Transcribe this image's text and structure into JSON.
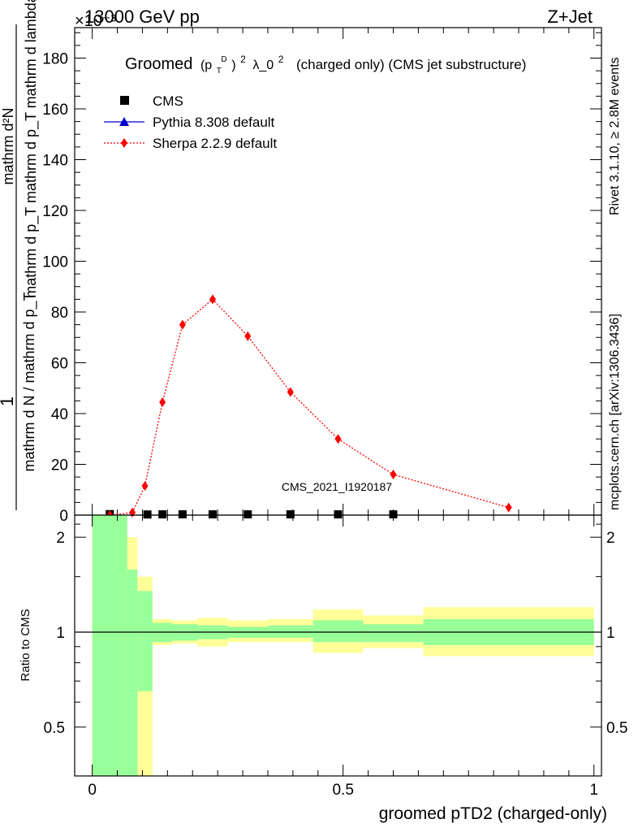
{
  "header": {
    "left": "13000 GeV pp",
    "right": "Z+Jet",
    "exponent": "×10⁻³"
  },
  "side_labels": {
    "rivet": "Rivet 3.1.10, ≥ 2.8M events",
    "mcplots": "mcplots.cern.ch [arXiv:1306.3436]"
  },
  "watermark": "CMS_2021_I1920187",
  "chart_data": [
    {
      "type": "scatter",
      "title_main": "Groomed",
      "title_formula": "(p",
      "title_rest": "λ_0",
      "title_suffix": "(charged only) (CMS jet substructure)",
      "title_sub_T": "T",
      "title_sup_D": "D",
      "title_sup_2a": "2",
      "title_sup_2b": "2",
      "ylabel_num": "mathrm d²N",
      "ylabel_den": "mathrm d p_T mathrm d p_T mathrm d lambda",
      "ylabel_prefix_num": "1",
      "ylabel_prefix_den": "mathrm d N / mathrm d p_T",
      "ylim": [
        0,
        192
      ],
      "yticks": [
        0,
        20,
        40,
        60,
        80,
        100,
        120,
        140,
        160,
        180
      ],
      "xlim": [
        -0.035,
        1.015
      ],
      "legend_position": "top-left",
      "series": [
        {
          "name": "CMS",
          "color": "#000000",
          "marker": "square",
          "x": [
            0.035,
            0.11,
            0.14,
            0.18,
            0.24,
            0.31,
            0.395,
            0.49,
            0.6
          ],
          "y": [
            0.4,
            0.25,
            0.3,
            0.3,
            0.3,
            0.3,
            0.3,
            0.3,
            0.3
          ]
        },
        {
          "name": "Pythia 8.308 default",
          "color": "#0000cc",
          "marker": "triangle",
          "x": [],
          "y": []
        },
        {
          "name": "Sherpa 2.2.9 default",
          "color": "#ff0000",
          "marker": "diamond",
          "line": "dotted",
          "x": [
            0.035,
            0.08,
            0.105,
            0.14,
            0.18,
            0.24,
            0.31,
            0.395,
            0.49,
            0.6,
            0.83
          ],
          "y": [
            0.0,
            1.0,
            11.5,
            44.5,
            75.0,
            85.0,
            70.5,
            48.5,
            30.0,
            16.0,
            3.0
          ]
        }
      ]
    },
    {
      "type": "area",
      "ylabel": "Ratio to CMS",
      "xlabel": "groomed pTD2 (charged-only)",
      "ylim": [
        0.35,
        2.35
      ],
      "yticks": [
        0.5,
        1,
        2
      ],
      "ytick_labels": [
        "0.5",
        "1",
        "2"
      ],
      "xlim": [
        -0.035,
        1.015
      ],
      "xticks": [
        0,
        0.5,
        1
      ],
      "xtick_labels": [
        "0",
        "0.5",
        "1"
      ],
      "bands": [
        {
          "x0": 0.0,
          "x1": 0.07,
          "g_lo": 0.35,
          "g_hi": 2.35,
          "y_lo": 0.35,
          "y_hi": 2.35
        },
        {
          "x0": 0.07,
          "x1": 0.09,
          "g_lo": 0.35,
          "g_hi": 1.58,
          "y_lo": 0.35,
          "y_hi": 2.0
        },
        {
          "x0": 0.09,
          "x1": 0.12,
          "g_lo": 0.65,
          "g_hi": 1.35,
          "y_lo": 0.35,
          "y_hi": 1.5
        },
        {
          "x0": 0.12,
          "x1": 0.16,
          "g_lo": 0.93,
          "g_hi": 1.07,
          "y_lo": 0.91,
          "y_hi": 1.1
        },
        {
          "x0": 0.16,
          "x1": 0.21,
          "g_lo": 0.94,
          "g_hi": 1.06,
          "y_lo": 0.92,
          "y_hi": 1.09
        },
        {
          "x0": 0.21,
          "x1": 0.27,
          "g_lo": 0.95,
          "g_hi": 1.05,
          "y_lo": 0.9,
          "y_hi": 1.11
        },
        {
          "x0": 0.27,
          "x1": 0.35,
          "g_lo": 0.96,
          "g_hi": 1.04,
          "y_lo": 0.93,
          "y_hi": 1.09
        },
        {
          "x0": 0.35,
          "x1": 0.44,
          "g_lo": 0.96,
          "g_hi": 1.05,
          "y_lo": 0.93,
          "y_hi": 1.1
        },
        {
          "x0": 0.44,
          "x1": 0.54,
          "g_lo": 0.93,
          "g_hi": 1.09,
          "y_lo": 0.86,
          "y_hi": 1.18
        },
        {
          "x0": 0.54,
          "x1": 0.66,
          "g_lo": 0.93,
          "g_hi": 1.06,
          "y_lo": 0.89,
          "y_hi": 1.13
        },
        {
          "x0": 0.66,
          "x1": 1.0,
          "g_lo": 0.91,
          "g_hi": 1.1,
          "y_lo": 0.84,
          "y_hi": 1.2
        }
      ],
      "colors": {
        "green": "#99ff99",
        "yellow": "#ffff99"
      }
    }
  ]
}
